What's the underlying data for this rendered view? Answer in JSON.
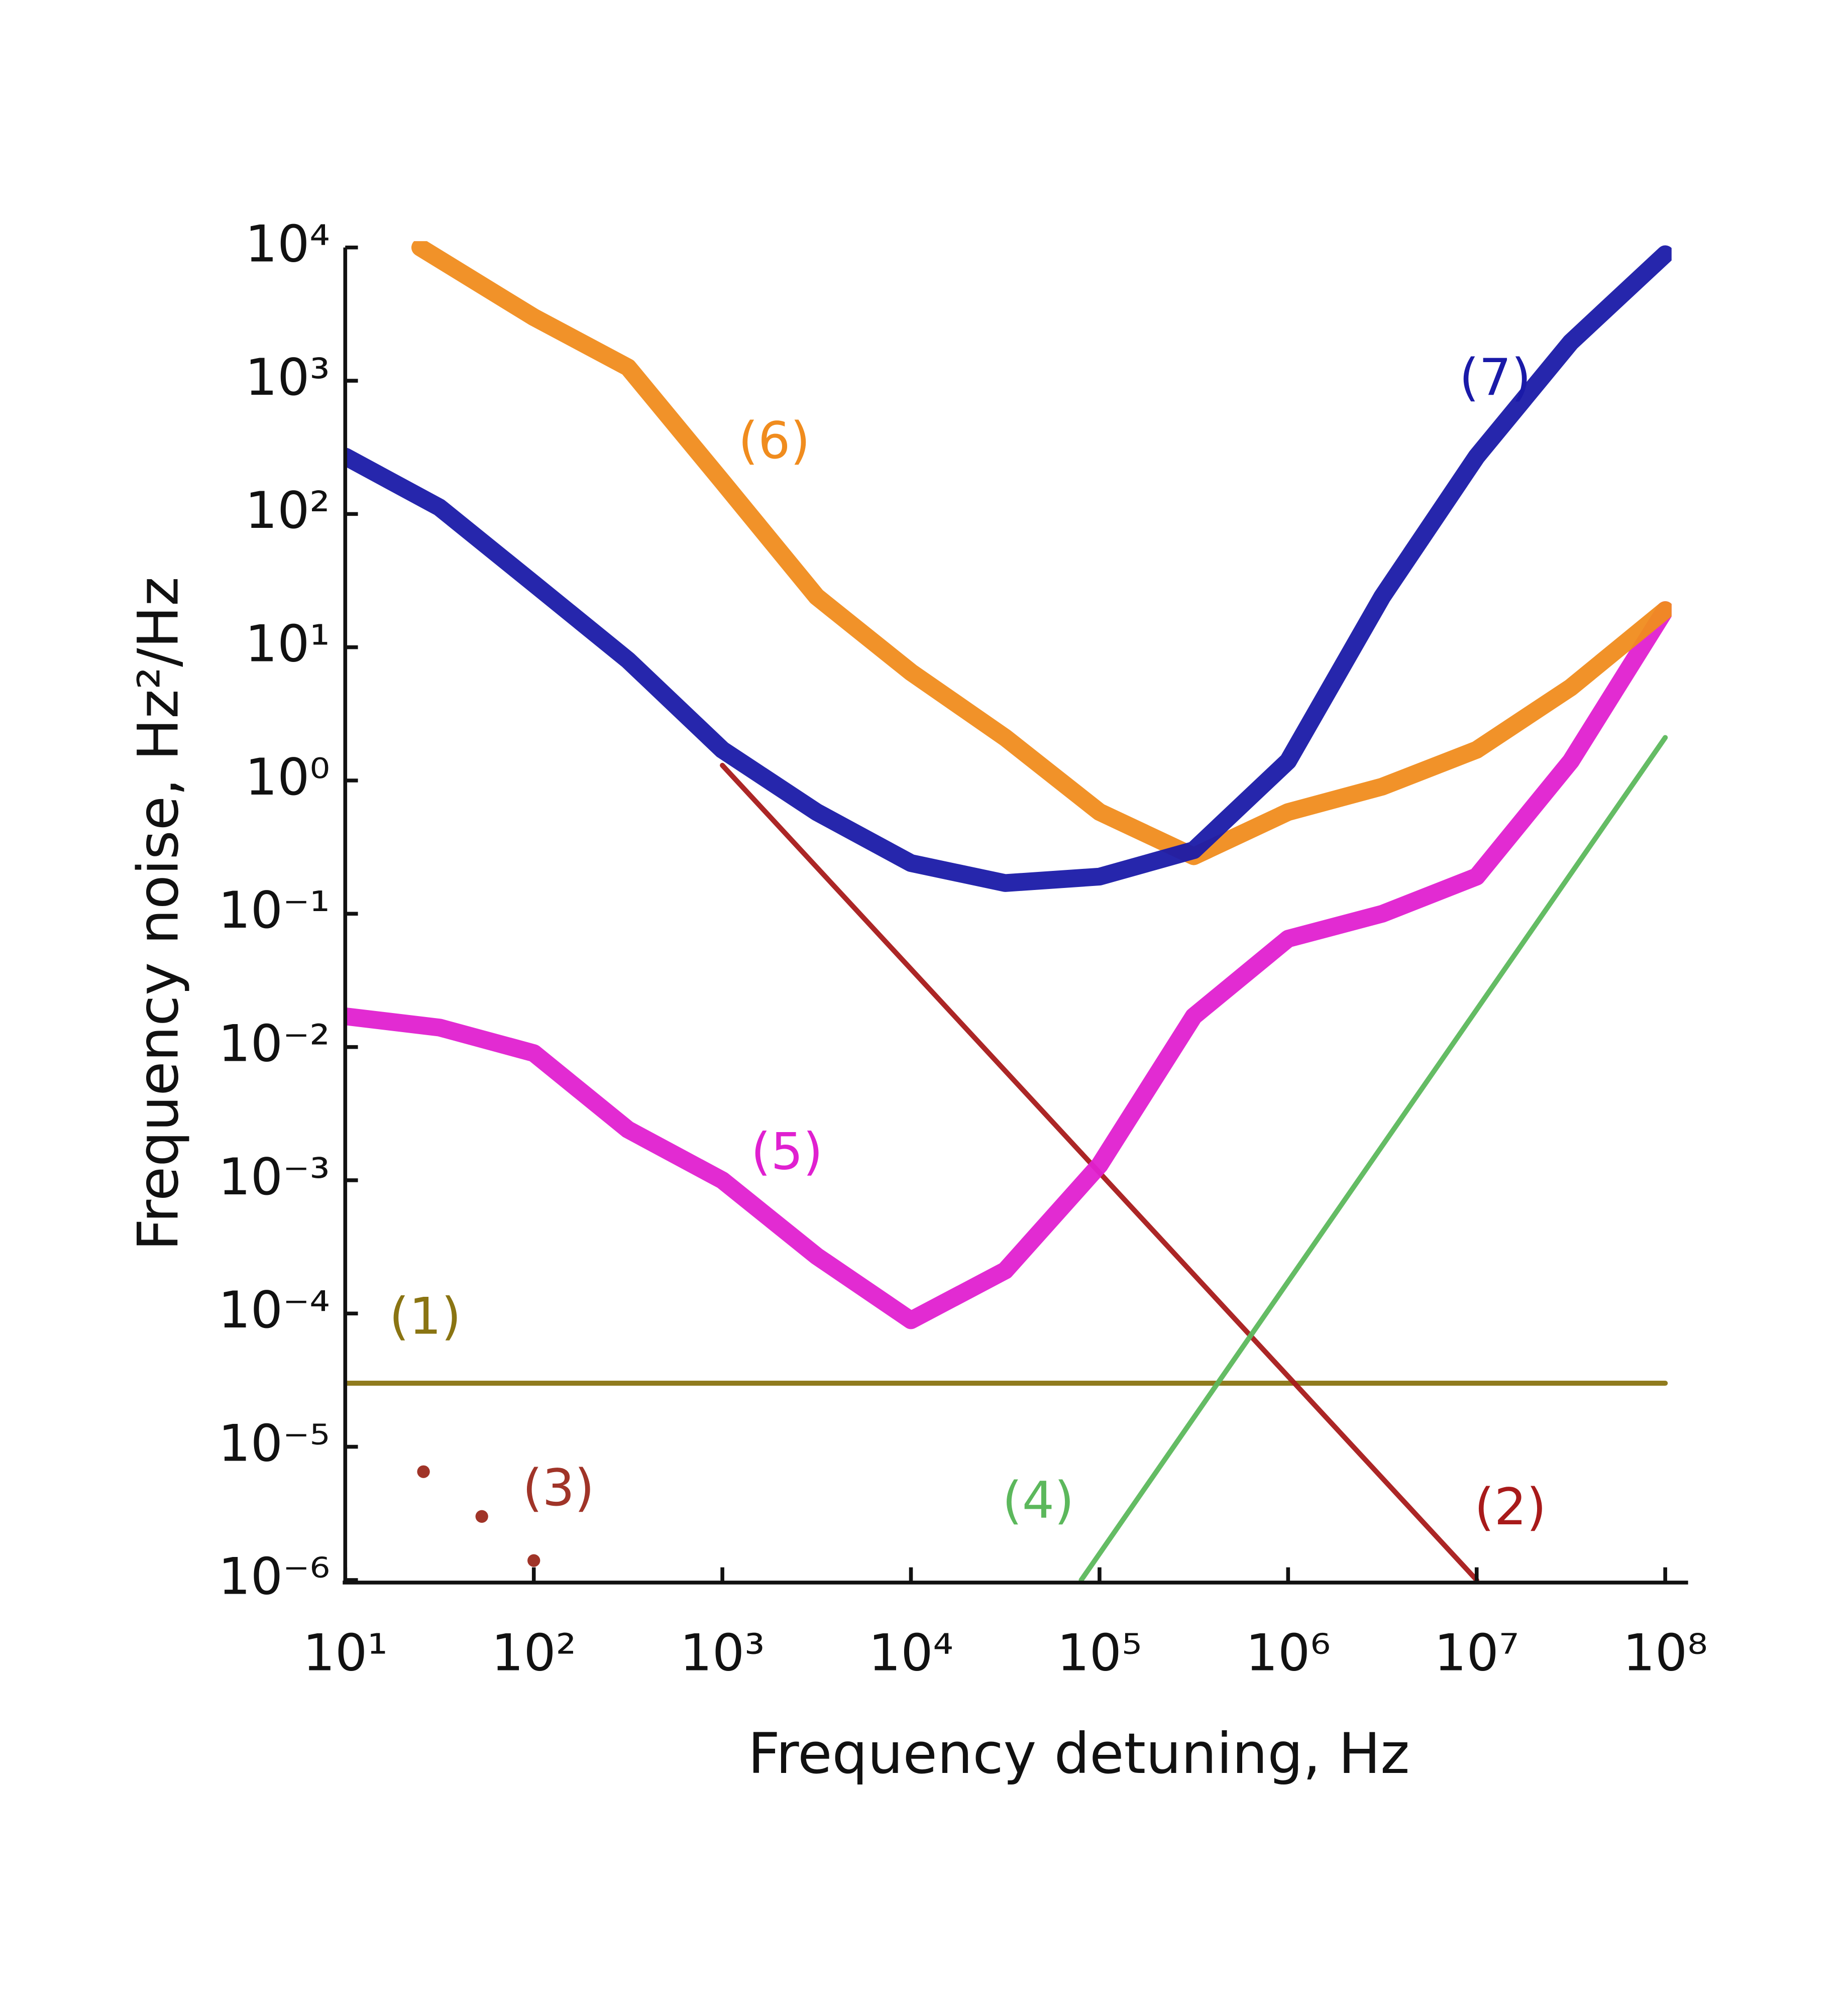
{
  "chart_data": {
    "type": "line",
    "xlabel": "Frequency detuning, Hz",
    "ylabel": "Frequency noise, Hz²/Hz",
    "xscale": "log",
    "yscale": "log",
    "xlim": [
      10,
      100000000
    ],
    "ylim": [
      1e-06,
      10000
    ],
    "xticks": [
      {
        "value": 10,
        "label": "10¹"
      },
      {
        "value": 100,
        "label": "10²"
      },
      {
        "value": 1000,
        "label": "10³"
      },
      {
        "value": 10000,
        "label": "10⁴"
      },
      {
        "value": 100000,
        "label": "10⁵"
      },
      {
        "value": 1000000,
        "label": "10⁶"
      },
      {
        "value": 10000000,
        "label": "10⁷"
      },
      {
        "value": 100000000,
        "label": "10⁸"
      }
    ],
    "yticks": [
      {
        "value": 10000,
        "label": "10⁴"
      },
      {
        "value": 1000,
        "label": "10³"
      },
      {
        "value": 100,
        "label": "10²"
      },
      {
        "value": 10,
        "label": "10¹"
      },
      {
        "value": 1,
        "label": "10⁰"
      },
      {
        "value": 0.1,
        "label": "10⁻¹"
      },
      {
        "value": 0.01,
        "label": "10⁻²"
      },
      {
        "value": 0.001,
        "label": "10⁻³"
      },
      {
        "value": 0.0001,
        "label": "10⁻⁴"
      },
      {
        "value": 1e-05,
        "label": "10⁻⁵"
      },
      {
        "value": 1e-06,
        "label": "10⁻⁶"
      }
    ],
    "series": [
      {
        "name": "(1)",
        "color": "#8a7412",
        "style": "line",
        "x": [
          10,
          100000000
        ],
        "values": [
          3e-05,
          3e-05
        ]
      },
      {
        "name": "(2)",
        "color": "#a81a1a",
        "style": "line",
        "x": [
          1000,
          10000000
        ],
        "values": [
          1.3,
          1e-06
        ]
      },
      {
        "name": "(3)",
        "color": "#a03428",
        "style": "dots",
        "x": [
          26,
          53,
          100
        ],
        "values": [
          6.5e-06,
          3e-06,
          1.4e-06
        ]
      },
      {
        "name": "(4)",
        "color": "#5cb85c",
        "style": "line",
        "x": [
          80000,
          100000000
        ],
        "values": [
          1e-06,
          2.1
        ]
      },
      {
        "name": "(5)",
        "color": "#e020d0",
        "style": "noisy",
        "x": [
          10,
          31.6,
          100,
          316,
          1000,
          3160,
          10000,
          31600,
          100000,
          316000,
          1000000,
          3160000,
          10000000,
          31600000,
          100000000
        ],
        "values": [
          0.017,
          0.014,
          0.009,
          0.0024,
          0.001,
          0.00027,
          8.9e-05,
          0.00021,
          0.0013,
          0.017,
          0.065,
          0.1,
          0.19,
          1.4,
          19
        ]
      },
      {
        "name": "(6)",
        "color": "#f08c1e",
        "style": "noisy",
        "x": [
          25,
          100,
          316,
          1000,
          3160,
          10000,
          31600,
          100000,
          316000,
          1000000,
          3160000,
          10000000,
          31600000,
          100000000
        ],
        "values": [
          10000,
          3000,
          1260,
          175,
          24,
          6.5,
          2.1,
          0.58,
          0.27,
          0.58,
          0.9,
          1.7,
          5,
          19
        ]
      },
      {
        "name": "(7)",
        "color": "#1a1aa8",
        "style": "noisy",
        "x": [
          10,
          31.6,
          100,
          316,
          1000,
          3160,
          10000,
          31600,
          100000,
          316000,
          1000000,
          3160000,
          10000000,
          31600000,
          100000000
        ],
        "values": [
          270,
          112,
          30,
          8,
          1.7,
          0.58,
          0.24,
          0.17,
          0.19,
          0.3,
          1.4,
          24,
          270,
          1950,
          8900
        ]
      }
    ]
  }
}
